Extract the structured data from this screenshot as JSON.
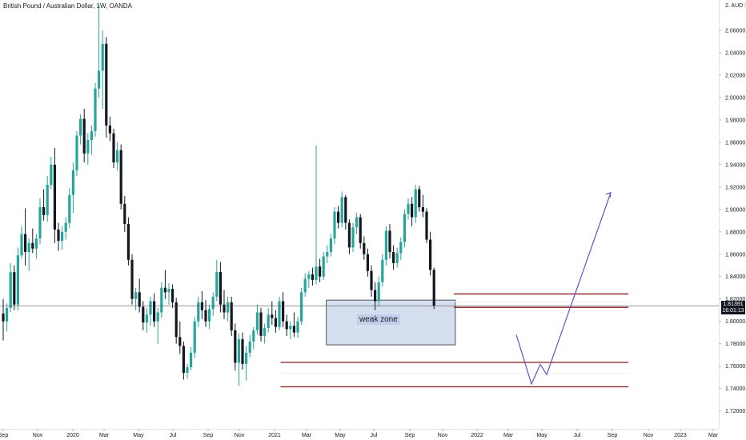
{
  "header": {
    "title": "British Pound / Australian Dollar, 1W, OANDA",
    "currency": "AUD"
  },
  "price_badge": {
    "price": "1.81391",
    "countdown": "16:01:13"
  },
  "annotations": {
    "zone_label": "weak zone"
  },
  "colors": {
    "bull": "#26a69a",
    "bear": "#131722",
    "zone_fill": "#b4c4e2",
    "zone_border": "#2a2e39",
    "level_line": "#8b1a1a",
    "projection": "#6a4fc0",
    "price_line": "#555555"
  },
  "chart_data": {
    "type": "candlestick",
    "y_axis": {
      "range": [
        1.714,
        2.09
      ],
      "ticks": [
        "2.06000",
        "2.04000",
        "2.02000",
        "2.00000",
        "1.98000",
        "1.96000",
        "1.94000",
        "1.92000",
        "1.90000",
        "1.88000",
        "1.86000",
        "1.84000",
        "1.82000",
        "1.80000",
        "1.78000",
        "1.76000",
        "1.74000",
        "1.72000"
      ],
      "unit_label": "AUD"
    },
    "x_axis": {
      "ticks": [
        "Sep",
        "Nov",
        "2020",
        "Mar",
        "May",
        "Jul",
        "Sep",
        "Nov",
        "2021",
        "Mar",
        "May",
        "Jul",
        "Sep",
        "Nov",
        "2022",
        "Mar",
        "May",
        "Jul",
        "Sep",
        "Nov",
        "2023",
        "Mar"
      ]
    },
    "last_price": 1.81391,
    "weak_zone": {
      "start": "2021-03",
      "end": "2021-11",
      "low": 1.779,
      "high": 1.819
    },
    "levels": [
      {
        "value": 1.8245,
        "start": "2021-11",
        "color": "#8b1a1a"
      },
      {
        "value": 1.8175,
        "start": "2021-11",
        "color": "#ffffff"
      },
      {
        "value": 1.8125,
        "start": "2021-11",
        "color": "#8b1a1a"
      },
      {
        "value": 1.7633,
        "start": "2021-01",
        "color": "#8b1a1a"
      },
      {
        "value": 1.7535,
        "start": "2021-01",
        "color": "#ffffff"
      },
      {
        "value": 1.7415,
        "start": "2021-01",
        "color": "#8b1a1a"
      }
    ],
    "projection": [
      {
        "date": "2022-04",
        "value": 1.788
      },
      {
        "date": "2022-05",
        "value": 1.744
      },
      {
        "date": "2022-05",
        "value": 1.7615
      },
      {
        "date": "2022-05",
        "value": 1.7525
      },
      {
        "date": "2022-09",
        "value": 1.915
      }
    ],
    "candles": [
      {
        "o": 1.807,
        "h": 1.82,
        "l": 1.783,
        "c": 1.8
      },
      {
        "o": 1.8,
        "h": 1.816,
        "l": 1.791,
        "c": 1.812
      },
      {
        "o": 1.812,
        "h": 1.852,
        "l": 1.808,
        "c": 1.844
      },
      {
        "o": 1.844,
        "h": 1.85,
        "l": 1.81,
        "c": 1.815
      },
      {
        "o": 1.815,
        "h": 1.866,
        "l": 1.81,
        "c": 1.859
      },
      {
        "o": 1.859,
        "h": 1.885,
        "l": 1.856,
        "c": 1.878
      },
      {
        "o": 1.878,
        "h": 1.901,
        "l": 1.85,
        "c": 1.862
      },
      {
        "o": 1.862,
        "h": 1.874,
        "l": 1.845,
        "c": 1.87
      },
      {
        "o": 1.87,
        "h": 1.883,
        "l": 1.861,
        "c": 1.865
      },
      {
        "o": 1.865,
        "h": 1.878,
        "l": 1.856,
        "c": 1.874
      },
      {
        "o": 1.874,
        "h": 1.91,
        "l": 1.869,
        "c": 1.902
      },
      {
        "o": 1.902,
        "h": 1.918,
        "l": 1.89,
        "c": 1.895
      },
      {
        "o": 1.895,
        "h": 1.93,
        "l": 1.889,
        "c": 1.922
      },
      {
        "o": 1.922,
        "h": 1.947,
        "l": 1.918,
        "c": 1.94
      },
      {
        "o": 1.94,
        "h": 1.955,
        "l": 1.87,
        "c": 1.882
      },
      {
        "o": 1.882,
        "h": 1.888,
        "l": 1.863,
        "c": 1.872
      },
      {
        "o": 1.872,
        "h": 1.885,
        "l": 1.864,
        "c": 1.88
      },
      {
        "o": 1.88,
        "h": 1.893,
        "l": 1.873,
        "c": 1.888
      },
      {
        "o": 1.888,
        "h": 1.919,
        "l": 1.883,
        "c": 1.913
      },
      {
        "o": 1.913,
        "h": 1.942,
        "l": 1.897,
        "c": 1.935
      },
      {
        "o": 1.935,
        "h": 1.97,
        "l": 1.93,
        "c": 1.966
      },
      {
        "o": 1.966,
        "h": 1.985,
        "l": 1.958,
        "c": 1.981
      },
      {
        "o": 1.981,
        "h": 1.99,
        "l": 1.942,
        "c": 1.95
      },
      {
        "o": 1.95,
        "h": 1.968,
        "l": 1.94,
        "c": 1.962
      },
      {
        "o": 1.962,
        "h": 1.975,
        "l": 1.949,
        "c": 1.97
      },
      {
        "o": 1.97,
        "h": 2.013,
        "l": 1.965,
        "c": 2.008
      },
      {
        "o": 2.008,
        "h": 2.083,
        "l": 2.0,
        "c": 2.024
      },
      {
        "o": 2.024,
        "h": 2.06,
        "l": 1.99,
        "c": 2.048
      },
      {
        "o": 2.048,
        "h": 2.054,
        "l": 1.964,
        "c": 1.975
      },
      {
        "o": 1.975,
        "h": 1.983,
        "l": 1.961,
        "c": 1.968
      },
      {
        "o": 1.968,
        "h": 1.972,
        "l": 1.937,
        "c": 1.942
      },
      {
        "o": 1.942,
        "h": 1.96,
        "l": 1.935,
        "c": 1.953
      },
      {
        "o": 1.953,
        "h": 1.958,
        "l": 1.9,
        "c": 1.905
      },
      {
        "o": 1.905,
        "h": 1.912,
        "l": 1.88,
        "c": 1.887
      },
      {
        "o": 1.887,
        "h": 1.893,
        "l": 1.85,
        "c": 1.855
      },
      {
        "o": 1.855,
        "h": 1.86,
        "l": 1.815,
        "c": 1.82
      },
      {
        "o": 1.82,
        "h": 1.83,
        "l": 1.81,
        "c": 1.826
      },
      {
        "o": 1.826,
        "h": 1.838,
        "l": 1.808,
        "c": 1.813
      },
      {
        "o": 1.813,
        "h": 1.818,
        "l": 1.792,
        "c": 1.799
      },
      {
        "o": 1.799,
        "h": 1.812,
        "l": 1.79,
        "c": 1.806
      },
      {
        "o": 1.806,
        "h": 1.822,
        "l": 1.796,
        "c": 1.818
      },
      {
        "o": 1.818,
        "h": 1.825,
        "l": 1.795,
        "c": 1.8
      },
      {
        "o": 1.8,
        "h": 1.812,
        "l": 1.78,
        "c": 1.808
      },
      {
        "o": 1.808,
        "h": 1.835,
        "l": 1.803,
        "c": 1.83
      },
      {
        "o": 1.83,
        "h": 1.846,
        "l": 1.82,
        "c": 1.826
      },
      {
        "o": 1.826,
        "h": 1.834,
        "l": 1.815,
        "c": 1.829
      },
      {
        "o": 1.829,
        "h": 1.833,
        "l": 1.812,
        "c": 1.817
      },
      {
        "o": 1.817,
        "h": 1.821,
        "l": 1.78,
        "c": 1.786
      },
      {
        "o": 1.786,
        "h": 1.8,
        "l": 1.771,
        "c": 1.778
      },
      {
        "o": 1.778,
        "h": 1.782,
        "l": 1.748,
        "c": 1.754
      },
      {
        "o": 1.754,
        "h": 1.762,
        "l": 1.749,
        "c": 1.759
      },
      {
        "o": 1.759,
        "h": 1.777,
        "l": 1.756,
        "c": 1.772
      },
      {
        "o": 1.772,
        "h": 1.804,
        "l": 1.767,
        "c": 1.8
      },
      {
        "o": 1.8,
        "h": 1.822,
        "l": 1.795,
        "c": 1.817
      },
      {
        "o": 1.817,
        "h": 1.827,
        "l": 1.802,
        "c": 1.81
      },
      {
        "o": 1.81,
        "h": 1.819,
        "l": 1.795,
        "c": 1.8
      },
      {
        "o": 1.8,
        "h": 1.815,
        "l": 1.793,
        "c": 1.811
      },
      {
        "o": 1.811,
        "h": 1.826,
        "l": 1.805,
        "c": 1.822
      },
      {
        "o": 1.822,
        "h": 1.855,
        "l": 1.818,
        "c": 1.844
      },
      {
        "o": 1.844,
        "h": 1.853,
        "l": 1.808,
        "c": 1.815
      },
      {
        "o": 1.815,
        "h": 1.828,
        "l": 1.802,
        "c": 1.808
      },
      {
        "o": 1.808,
        "h": 1.822,
        "l": 1.8,
        "c": 1.817
      },
      {
        "o": 1.817,
        "h": 1.822,
        "l": 1.787,
        "c": 1.792
      },
      {
        "o": 1.792,
        "h": 1.798,
        "l": 1.756,
        "c": 1.763
      },
      {
        "o": 1.763,
        "h": 1.789,
        "l": 1.742,
        "c": 1.784
      },
      {
        "o": 1.784,
        "h": 1.79,
        "l": 1.757,
        "c": 1.762
      },
      {
        "o": 1.762,
        "h": 1.778,
        "l": 1.747,
        "c": 1.772
      },
      {
        "o": 1.772,
        "h": 1.788,
        "l": 1.768,
        "c": 1.782
      },
      {
        "o": 1.782,
        "h": 1.795,
        "l": 1.775,
        "c": 1.792
      },
      {
        "o": 1.792,
        "h": 1.815,
        "l": 1.788,
        "c": 1.808
      },
      {
        "o": 1.808,
        "h": 1.812,
        "l": 1.782,
        "c": 1.787
      },
      {
        "o": 1.787,
        "h": 1.798,
        "l": 1.78,
        "c": 1.794
      },
      {
        "o": 1.794,
        "h": 1.812,
        "l": 1.79,
        "c": 1.806
      },
      {
        "o": 1.806,
        "h": 1.818,
        "l": 1.797,
        "c": 1.803
      },
      {
        "o": 1.803,
        "h": 1.81,
        "l": 1.79,
        "c": 1.795
      },
      {
        "o": 1.795,
        "h": 1.822,
        "l": 1.792,
        "c": 1.818
      },
      {
        "o": 1.818,
        "h": 1.826,
        "l": 1.795,
        "c": 1.8
      },
      {
        "o": 1.8,
        "h": 1.806,
        "l": 1.787,
        "c": 1.793
      },
      {
        "o": 1.793,
        "h": 1.8,
        "l": 1.784,
        "c": 1.796
      },
      {
        "o": 1.796,
        "h": 1.808,
        "l": 1.786,
        "c": 1.79
      },
      {
        "o": 1.79,
        "h": 1.804,
        "l": 1.785,
        "c": 1.8
      },
      {
        "o": 1.8,
        "h": 1.83,
        "l": 1.797,
        "c": 1.826
      },
      {
        "o": 1.826,
        "h": 1.843,
        "l": 1.822,
        "c": 1.838
      },
      {
        "o": 1.838,
        "h": 1.845,
        "l": 1.83,
        "c": 1.842
      },
      {
        "o": 1.842,
        "h": 1.848,
        "l": 1.832,
        "c": 1.837
      },
      {
        "o": 1.837,
        "h": 1.957,
        "l": 1.833,
        "c": 1.849
      },
      {
        "o": 1.849,
        "h": 1.856,
        "l": 1.835,
        "c": 1.84
      },
      {
        "o": 1.84,
        "h": 1.862,
        "l": 1.837,
        "c": 1.858
      },
      {
        "o": 1.858,
        "h": 1.868,
        "l": 1.852,
        "c": 1.862
      },
      {
        "o": 1.862,
        "h": 1.878,
        "l": 1.858,
        "c": 1.874
      },
      {
        "o": 1.874,
        "h": 1.902,
        "l": 1.869,
        "c": 1.898
      },
      {
        "o": 1.898,
        "h": 1.903,
        "l": 1.883,
        "c": 1.888
      },
      {
        "o": 1.888,
        "h": 1.916,
        "l": 1.884,
        "c": 1.911
      },
      {
        "o": 1.911,
        "h": 1.913,
        "l": 1.882,
        "c": 1.888
      },
      {
        "o": 1.888,
        "h": 1.891,
        "l": 1.86,
        "c": 1.866
      },
      {
        "o": 1.866,
        "h": 1.888,
        "l": 1.862,
        "c": 1.884
      },
      {
        "o": 1.884,
        "h": 1.897,
        "l": 1.878,
        "c": 1.893
      },
      {
        "o": 1.893,
        "h": 1.896,
        "l": 1.865,
        "c": 1.87
      },
      {
        "o": 1.87,
        "h": 1.876,
        "l": 1.855,
        "c": 1.86
      },
      {
        "o": 1.86,
        "h": 1.865,
        "l": 1.84,
        "c": 1.845
      },
      {
        "o": 1.845,
        "h": 1.85,
        "l": 1.822,
        "c": 1.828
      },
      {
        "o": 1.828,
        "h": 1.835,
        "l": 1.81,
        "c": 1.818
      },
      {
        "o": 1.818,
        "h": 1.84,
        "l": 1.813,
        "c": 1.835
      },
      {
        "o": 1.835,
        "h": 1.86,
        "l": 1.831,
        "c": 1.855
      },
      {
        "o": 1.855,
        "h": 1.885,
        "l": 1.85,
        "c": 1.881
      },
      {
        "o": 1.881,
        "h": 1.887,
        "l": 1.856,
        "c": 1.862
      },
      {
        "o": 1.862,
        "h": 1.868,
        "l": 1.846,
        "c": 1.852
      },
      {
        "o": 1.852,
        "h": 1.866,
        "l": 1.848,
        "c": 1.861
      },
      {
        "o": 1.861,
        "h": 1.875,
        "l": 1.855,
        "c": 1.871
      },
      {
        "o": 1.871,
        "h": 1.9,
        "l": 1.866,
        "c": 1.896
      },
      {
        "o": 1.896,
        "h": 1.91,
        "l": 1.891,
        "c": 1.905
      },
      {
        "o": 1.905,
        "h": 1.911,
        "l": 1.885,
        "c": 1.893
      },
      {
        "o": 1.893,
        "h": 1.922,
        "l": 1.888,
        "c": 1.918
      },
      {
        "o": 1.918,
        "h": 1.921,
        "l": 1.898,
        "c": 1.902
      },
      {
        "o": 1.902,
        "h": 1.913,
        "l": 1.893,
        "c": 1.898
      },
      {
        "o": 1.898,
        "h": 1.901,
        "l": 1.87,
        "c": 1.873
      },
      {
        "o": 1.873,
        "h": 1.88,
        "l": 1.841,
        "c": 1.846
      },
      {
        "o": 1.846,
        "h": 1.848,
        "l": 1.811,
        "c": 1.814
      }
    ]
  }
}
